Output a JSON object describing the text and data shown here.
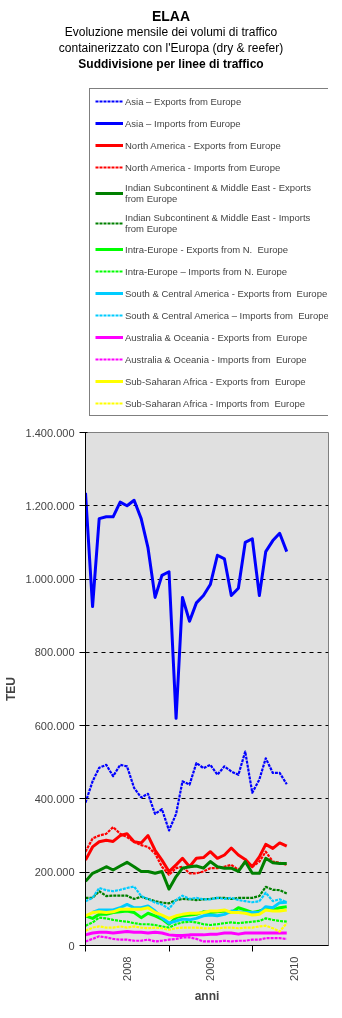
{
  "chart_data": {
    "type": "line",
    "title": "ELAA",
    "subtitle": "Evoluzione mensile dei volumi di traffico containerizzato con l'Europa (dry & reefer)",
    "annotations": [
      "Suddivisione per linee di traffico"
    ],
    "xlabel": "anni",
    "ylabel": "TEU",
    "x": [
      "2008-01",
      "2008-02",
      "2008-03",
      "2008-04",
      "2008-05",
      "2008-06",
      "2008-07",
      "2008-08",
      "2008-09",
      "2008-10",
      "2008-11",
      "2008-12",
      "2009-01",
      "2009-02",
      "2009-03",
      "2009-04",
      "2009-05",
      "2009-06",
      "2009-07",
      "2009-08",
      "2009-09",
      "2009-10",
      "2009-11",
      "2009-12",
      "2010-01",
      "2010-02",
      "2010-03",
      "2010-04",
      "2010-05",
      "2010-06"
    ],
    "xlim": [
      "2008-01",
      "2010-12"
    ],
    "xticks": [
      {
        "value": "2008-01",
        "label": null
      },
      {
        "value": "2008-07",
        "label": "2008"
      },
      {
        "value": "2009-01",
        "label": null
      },
      {
        "value": "2009-07",
        "label": "2009"
      },
      {
        "value": "2010-01",
        "label": null
      },
      {
        "value": "2010-07",
        "label": "2010"
      }
    ],
    "ylim": [
      0,
      1400000
    ],
    "yticks": [
      0,
      {
        "value": 200000,
        "label": "200.000"
      },
      {
        "value": 400000,
        "label": "400.000"
      },
      {
        "value": 600000,
        "label": "600.000"
      },
      {
        "value": 800000,
        "label": "800.000"
      },
      {
        "value": 1000000,
        "label": "1.000.000"
      },
      {
        "value": 1200000,
        "label": "1.200.000"
      },
      {
        "value": 1400000,
        "label": "1.400.000"
      }
    ],
    "grid": "y",
    "legend": "top",
    "series": [
      {
        "name": "Asia – Exports from Europe",
        "color": "#0000ff",
        "line_style": "dotted",
        "values": [
          390000,
          448000,
          485000,
          493000,
          462000,
          493000,
          489000,
          430000,
          404000,
          414000,
          359000,
          372000,
          314000,
          359000,
          448000,
          439000,
          498000,
          484000,
          493000,
          466000,
          489000,
          475000,
          466000,
          529000,
          417000,
          453000,
          511000,
          471000,
          471000,
          440000
        ]
      },
      {
        "name": "Asia – Imports from Europe",
        "color": "#0000ff",
        "line_style": "solid",
        "values": [
          1235000,
          925000,
          1165000,
          1170000,
          1170000,
          1210000,
          1200000,
          1215000,
          1165000,
          1085000,
          950000,
          1010000,
          1020000,
          620000,
          950000,
          885000,
          935000,
          955000,
          985000,
          1065000,
          1055000,
          955000,
          975000,
          1100000,
          1110000,
          955000,
          1075000,
          1105000,
          1125000,
          1075000
        ]
      },
      {
        "name": "North America - Exports from Europe",
        "color": "#ff0000",
        "line_style": "solid",
        "values": [
          233000,
          269000,
          283000,
          287000,
          284000,
          300000,
          305000,
          283000,
          280000,
          300000,
          260000,
          233000,
          202000,
          220000,
          238000,
          215000,
          238000,
          240000,
          256000,
          238000,
          247000,
          266000,
          247000,
          235000,
          215000,
          242000,
          276000,
          265000,
          280000,
          271000
        ]
      },
      {
        "name": "North America - Imports from Europe",
        "color": "#ff0000",
        "line_style": "dotted",
        "values": [
          256000,
          292000,
          300000,
          305000,
          323000,
          305000,
          296000,
          283000,
          274000,
          269000,
          251000,
          215000,
          193000,
          211000,
          215000,
          197000,
          197000,
          202000,
          211000,
          211000,
          215000,
          220000,
          206000,
          229000,
          215000,
          229000,
          256000,
          229000,
          226000,
          220000
        ]
      },
      {
        "name": "Indian Subcontinent & Middle East - Exports from Europe",
        "color": "#008000",
        "line_style": "solid",
        "values": [
          175000,
          197000,
          205000,
          215000,
          206000,
          217000,
          227000,
          215000,
          202000,
          202000,
          197000,
          202000,
          154000,
          188000,
          211000,
          215000,
          217000,
          211000,
          229000,
          215000,
          211000,
          211000,
          202000,
          229000,
          197000,
          197000,
          238000,
          226000,
          224000,
          224000
        ]
      },
      {
        "name": "Indian Subcontinent & Middle East - Imports from Europe",
        "color": "#008000",
        "line_style": "dotted",
        "values": [
          130000,
          130000,
          148000,
          135000,
          136000,
          136000,
          136000,
          127000,
          133000,
          127000,
          121000,
          117000,
          115000,
          124000,
          127000,
          126000,
          124000,
          126000,
          127000,
          130000,
          130000,
          127000,
          130000,
          130000,
          130000,
          135000,
          160000,
          152000,
          151000,
          142000
        ]
      },
      {
        "name": "Intra-Europe - Exports from N.  Europe",
        "color": "#00ff00",
        "line_style": "solid",
        "values": [
          81000,
          74000,
          85000,
          85000,
          90000,
          92000,
          94000,
          90000,
          76000,
          88000,
          81000,
          72000,
          58000,
          76000,
          81000,
          83000,
          85000,
          92000,
          90000,
          92000,
          94000,
          90000,
          103000,
          97000,
          90000,
          94000,
          99000,
          97000,
          103000,
          106000
        ]
      },
      {
        "name": "Intra-Europe – Imports from N. Europe",
        "color": "#00ff00",
        "line_style": "dotted",
        "values": [
          54000,
          63000,
          76000,
          74000,
          70000,
          67000,
          65000,
          61000,
          58000,
          58000,
          56000,
          52000,
          49000,
          58000,
          63000,
          65000,
          63000,
          58000,
          56000,
          58000,
          61000,
          63000,
          61000,
          63000,
          65000,
          67000,
          74000,
          70000,
          67000,
          65000
        ]
      },
      {
        "name": "South & Central America - Exports from  Europe",
        "color": "#00ccff",
        "line_style": "solid",
        "values": [
          null,
          90000,
          97000,
          97000,
          97000,
          103000,
          112000,
          103000,
          103000,
          108000,
          94000,
          76000,
          61000,
          67000,
          72000,
          70000,
          74000,
          81000,
          83000,
          81000,
          85000,
          94000,
          92000,
          90000,
          90000,
          90000,
          106000,
          103000,
          117000,
          118000
        ]
      },
      {
        "name": "South & Central America – Imports from  Europe",
        "color": "#00ccff",
        "line_style": "dotted",
        "values": [
          121000,
          130000,
          157000,
          151000,
          148000,
          152000,
          157000,
          161000,
          135000,
          127000,
          117000,
          112000,
          100000,
          124000,
          136000,
          127000,
          130000,
          126000,
          126000,
          130000,
          127000,
          130000,
          124000,
          121000,
          118000,
          121000,
          144000,
          121000,
          126000,
          118000
        ]
      },
      {
        "name": "Australia & Oceania - Exports from  Europe",
        "color": "#ff00ff",
        "line_style": "solid",
        "values": [
          29000,
          34000,
          36000,
          36000,
          34000,
          36000,
          38000,
          36000,
          36000,
          34000,
          36000,
          34000,
          29000,
          27000,
          27000,
          29000,
          29000,
          29000,
          31000,
          31000,
          34000,
          34000,
          31000,
          34000,
          34000,
          34000,
          34000,
          34000,
          34000,
          34000
        ]
      },
      {
        "name": "Australia & Oceania - Imports from  Europe",
        "color": "#ff00ff",
        "line_style": "dotted",
        "values": [
          11000,
          18000,
          25000,
          22000,
          18000,
          16000,
          16000,
          13000,
          13000,
          16000,
          11000,
          13000,
          16000,
          18000,
          22000,
          22000,
          18000,
          11000,
          11000,
          11000,
          13000,
          11000,
          13000,
          13000,
          16000,
          16000,
          20000,
          20000,
          20000,
          18000
        ]
      },
      {
        "name": "Sub-Saharan Africa - Exports from  Europe",
        "color": "#ffff00",
        "line_style": "solid",
        "values": [
          81000,
          90000,
          92000,
          90000,
          92000,
          99000,
          99000,
          99000,
          99000,
          103000,
          90000,
          83000,
          74000,
          81000,
          85000,
          88000,
          88000,
          90000,
          94000,
          94000,
          97000,
          90000,
          90000,
          88000,
          83000,
          85000,
          97000,
          94000,
          94000,
          97000
        ]
      },
      {
        "name": "Sub-Saharan Africa - Imports from  Europe",
        "color": "#ffff00",
        "line_style": "dotted",
        "values": [
          40000,
          49000,
          52000,
          49000,
          49000,
          52000,
          49000,
          52000,
          49000,
          47000,
          49000,
          47000,
          43000,
          47000,
          49000,
          49000,
          49000,
          47000,
          47000,
          47000,
          49000,
          49000,
          47000,
          49000,
          49000,
          52000,
          54000,
          47000,
          38000,
          61000
        ]
      }
    ]
  }
}
